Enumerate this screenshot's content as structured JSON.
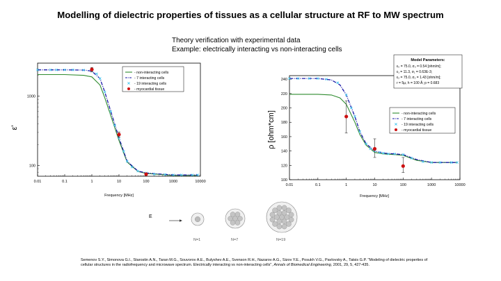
{
  "title": "Modelling of dielectric properties of tissues as a cellular structure at RF to MW spectrum",
  "subtitle_line1": "Theory verification with experimental data",
  "subtitle_line2": "Example:  electrically interacting vs non-interacting cells",
  "colors": {
    "non_interacting": "#2e8b2e",
    "interacting7": "#1a1aa8",
    "interacting19": "#47c8f0",
    "tissue": "#cc1111"
  },
  "chart_data": [
    {
      "type": "line",
      "xlabel": "Frequency [MHz]",
      "ylabel": "ε'",
      "x_scale": "log",
      "y_scale": "log",
      "xlim": [
        0.01,
        10000
      ],
      "ylim": [
        70,
        3000
      ],
      "xticks": [
        "0.01",
        "0.1",
        "1",
        "10",
        "100",
        "1000",
        "10000"
      ],
      "yticks": [
        {
          "value": 100,
          "label": "100"
        },
        {
          "value": 1000,
          "label": "1000"
        }
      ],
      "legend_position": "top-right",
      "series": [
        {
          "name": "non-interacting cells",
          "style": "line",
          "x": [
            0.01,
            0.1,
            0.5,
            1,
            2,
            3,
            5,
            10,
            20,
            50,
            100,
            1000,
            8000
          ],
          "y": [
            2050,
            2050,
            2000,
            1900,
            1450,
            950,
            520,
            230,
            112,
            82,
            77,
            72,
            72
          ]
        },
        {
          "name": "7 interacting cells",
          "style": "dash-dot",
          "x": [
            0.01,
            0.1,
            0.5,
            1,
            2,
            3,
            5,
            10,
            20,
            50,
            100,
            1000,
            8000
          ],
          "y": [
            2400,
            2400,
            2380,
            2300,
            1800,
            1150,
            600,
            250,
            115,
            83,
            78,
            73,
            73
          ]
        },
        {
          "name": "19 interacting cells",
          "style": "markers",
          "x": [
            0.01,
            0.03,
            0.05,
            0.1,
            0.2,
            0.5,
            1,
            1.5,
            2,
            3,
            5,
            7,
            10,
            15,
            20,
            30,
            50,
            100,
            200,
            500,
            1000,
            2000,
            5000,
            8000
          ],
          "y": [
            2400,
            2400,
            2400,
            2400,
            2400,
            2380,
            2300,
            2100,
            1800,
            1150,
            600,
            380,
            250,
            160,
            115,
            95,
            83,
            78,
            75,
            74,
            73,
            73,
            73,
            73
          ]
        },
        {
          "name": "myocardial tissue",
          "style": "points",
          "x": [
            1,
            10,
            100
          ],
          "y": [
            2430,
            280,
            75
          ],
          "err_low": [
            2250,
            255,
            72
          ],
          "err_high": [
            2600,
            305,
            78
          ]
        }
      ]
    },
    {
      "type": "line",
      "xlabel": "Frequency [MHz]",
      "ylabel": "ρ [ohm*cm]",
      "x_scale": "log",
      "xlim": [
        0.01,
        10000
      ],
      "ylim": [
        100,
        245
      ],
      "xticks": [
        "0.01",
        "0.1",
        "1",
        "10",
        "100",
        "1000",
        "10000"
      ],
      "yticks": [
        "100",
        "120",
        "140",
        "160",
        "180",
        "200",
        "220",
        "240"
      ],
      "legend_position": "center-right",
      "series": [
        {
          "name": "non-interacting cells",
          "style": "line",
          "x": [
            0.01,
            0.1,
            0.3,
            0.6,
            1,
            2,
            3,
            5,
            10,
            20,
            50,
            100,
            300,
            1000,
            8000
          ],
          "y": [
            219,
            219,
            218,
            214,
            205,
            180,
            163,
            148,
            138,
            136,
            135,
            134,
            127,
            124,
            124
          ]
        },
        {
          "name": "7 interacting cells",
          "style": "dash-dot",
          "x": [
            0.01,
            0.1,
            0.3,
            0.6,
            1,
            2,
            3,
            5,
            10,
            20,
            50,
            100,
            300,
            1000,
            8000
          ],
          "y": [
            241,
            241,
            239,
            232,
            218,
            188,
            167,
            150,
            140,
            137,
            136,
            135,
            128,
            124,
            124
          ]
        },
        {
          "name": "19 interacting cells",
          "style": "markers",
          "x": [
            0.01,
            0.02,
            0.05,
            0.1,
            0.2,
            0.5,
            1,
            1.5,
            2,
            3,
            5,
            7,
            10,
            15,
            20,
            30,
            50,
            100,
            200,
            500,
            1000,
            2000,
            5000,
            8000
          ],
          "y": [
            241,
            241,
            241,
            241,
            240,
            235,
            218,
            200,
            188,
            167,
            150,
            143,
            140,
            138,
            137,
            136,
            136,
            135,
            130,
            125,
            124,
            124,
            124,
            124
          ]
        },
        {
          "name": "myocardial tissue",
          "style": "points",
          "x": [
            1,
            10,
            100
          ],
          "y": [
            188,
            143,
            119
          ],
          "err_low": [
            165,
            131,
            110
          ],
          "err_high": [
            210,
            157,
            131
          ]
        }
      ]
    }
  ],
  "params": {
    "heading": "Model Parameters:",
    "line1": "ε₀ = 75.0, σ₀ = 0.54 [ohm/m];",
    "line2": "ε₁ = 11.3, σ₁ = 0.63E-3;",
    "line3": "ε₂ = 75.0, σ₂ = 1.43 [ohm/m];",
    "line4": "r = 5μ, h = 100 Å; p = 0.683"
  },
  "cell_figure": {
    "field_label": "E",
    "labels": [
      "N=1",
      "N=7",
      "N=19"
    ]
  },
  "citation": {
    "authors": "Semenov S.Y., Simonova G.I., Starostin A.N., Taran M.G., Souvorov A.E., Bulyshev A.E., Svenson R.H., Nazarov A.G., Sizov Y.E., Posukh V.G., Pavlovsky A., Tatsis G.P. \"Modeling of dielectric properties of cellular structures in the radiofrequency and microwave spectrum. Electrically interacting vs non-interacting cells\",",
    "journal": "Annals of Biomedical Engineering",
    "rest": ", 2001, 29, 5, 427-435."
  }
}
